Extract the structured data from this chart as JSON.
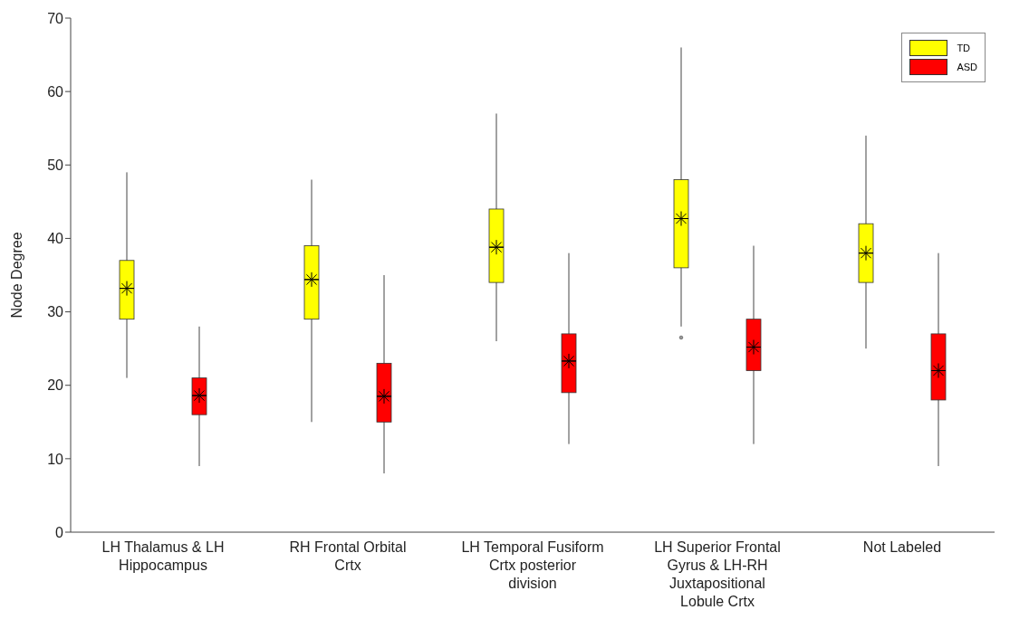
{
  "chart_data": {
    "type": "box",
    "ylabel": "Node Degree",
    "categories": [
      "LH Thalamus & LH Hippocampus",
      "RH Frontal Orbital Crtx",
      "LH Temporal Fusiform Crtx posterior division",
      "LH Superior Frontal Gyrus & LH-RH Juxtapositional Lobule Crtx",
      "Not Labeled"
    ],
    "ylim": [
      0,
      70
    ],
    "yticks": [
      0,
      10,
      20,
      30,
      40,
      50,
      60,
      70
    ],
    "legend": "top right",
    "series": [
      {
        "name": "TD",
        "color": "#ffff00",
        "boxes": [
          {
            "low": 21,
            "q1": 29,
            "median": 33.2,
            "q3": 37,
            "high": 49,
            "mean": 33.2
          },
          {
            "low": 15,
            "q1": 29,
            "median": 34.4,
            "q3": 39,
            "high": 48,
            "mean": 34.4
          },
          {
            "low": 26,
            "q1": 34,
            "median": 38.8,
            "q3": 44,
            "high": 57,
            "mean": 38.8
          },
          {
            "low": 28,
            "q1": 36,
            "median": 42.7,
            "q3": 48,
            "high": 66,
            "mean": 42.7,
            "outliers": [
              26.5
            ]
          },
          {
            "low": 25,
            "q1": 34,
            "median": 38,
            "q3": 42,
            "high": 54,
            "mean": 38
          }
        ]
      },
      {
        "name": "ASD",
        "color": "#ff0000",
        "boxes": [
          {
            "low": 9,
            "q1": 16,
            "median": 18.6,
            "q3": 21,
            "high": 28,
            "mean": 18.6
          },
          {
            "low": 8,
            "q1": 15,
            "median": 18.5,
            "q3": 23,
            "high": 35,
            "mean": 18.5
          },
          {
            "low": 12,
            "q1": 19,
            "median": 23.3,
            "q3": 27,
            "high": 38,
            "mean": 23.3
          },
          {
            "low": 12,
            "q1": 22,
            "median": 25.2,
            "q3": 29,
            "high": 39,
            "mean": 25.2
          },
          {
            "low": 9,
            "q1": 18,
            "median": 22,
            "q3": 27,
            "high": 38,
            "mean": 22
          }
        ]
      }
    ]
  }
}
